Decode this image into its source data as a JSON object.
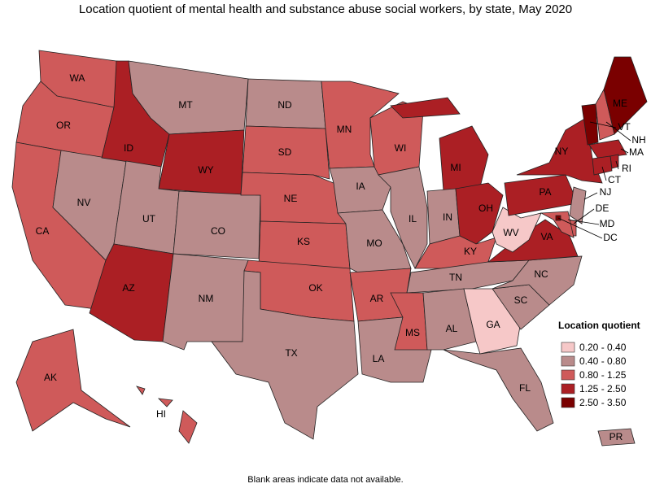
{
  "title": "Location quotient of mental health and substance abuse social workers, by state, May 2020",
  "note": "Blank areas indicate data not available.",
  "legend": {
    "title": "Location quotient",
    "items": [
      {
        "label": "0.20 - 0.40",
        "color": "#f6c8c8"
      },
      {
        "label": "0.40 - 0.80",
        "color": "#b98b8b"
      },
      {
        "label": "0.80 - 1.25",
        "color": "#cf5a5a"
      },
      {
        "label": "1.25 - 2.50",
        "color": "#ab1f24"
      },
      {
        "label": "2.50 - 3.50",
        "color": "#7a0000"
      }
    ]
  },
  "states": [
    {
      "label": "WA",
      "class": 2
    },
    {
      "label": "OR",
      "class": 2
    },
    {
      "label": "CA",
      "class": 2
    },
    {
      "label": "NV",
      "class": 1
    },
    {
      "label": "ID",
      "class": 3
    },
    {
      "label": "MT",
      "class": 1
    },
    {
      "label": "WY",
      "class": 3
    },
    {
      "label": "UT",
      "class": 1
    },
    {
      "label": "CO",
      "class": 1
    },
    {
      "label": "AZ",
      "class": 3
    },
    {
      "label": "NM",
      "class": 1
    },
    {
      "label": "ND",
      "class": 1
    },
    {
      "label": "SD",
      "class": 2
    },
    {
      "label": "NE",
      "class": 2
    },
    {
      "label": "KS",
      "class": 2
    },
    {
      "label": "OK",
      "class": 2
    },
    {
      "label": "TX",
      "class": 1
    },
    {
      "label": "MN",
      "class": 2
    },
    {
      "label": "IA",
      "class": 1
    },
    {
      "label": "MO",
      "class": 1
    },
    {
      "label": "AR",
      "class": 2
    },
    {
      "label": "LA",
      "class": 1
    },
    {
      "label": "WI",
      "class": 2
    },
    {
      "label": "IL",
      "class": 1
    },
    {
      "label": "MI",
      "class": 3
    },
    {
      "label": "IN",
      "class": 1
    },
    {
      "label": "OH",
      "class": 3
    },
    {
      "label": "KY",
      "class": 2
    },
    {
      "label": "TN",
      "class": 1
    },
    {
      "label": "MS",
      "class": 2
    },
    {
      "label": "AL",
      "class": 1
    },
    {
      "label": "GA",
      "class": 0
    },
    {
      "label": "FL",
      "class": 1
    },
    {
      "label": "SC",
      "class": 1
    },
    {
      "label": "NC",
      "class": 1
    },
    {
      "label": "VA",
      "class": 3
    },
    {
      "label": "WV",
      "class": 0
    },
    {
      "label": "PA",
      "class": 3
    },
    {
      "label": "NY",
      "class": 3
    },
    {
      "label": "VT",
      "class": 4
    },
    {
      "label": "NH",
      "class": 2
    },
    {
      "label": "ME",
      "class": 4
    },
    {
      "label": "MA",
      "class": 3
    },
    {
      "label": "RI",
      "class": 3
    },
    {
      "label": "CT",
      "class": 3
    },
    {
      "label": "NJ",
      "class": 1
    },
    {
      "label": "DE",
      "class": 2
    },
    {
      "label": "MD",
      "class": 2
    },
    {
      "label": "DC",
      "class": 4
    },
    {
      "label": "AK",
      "class": 2
    },
    {
      "label": "HI",
      "class": 2
    },
    {
      "label": "PR",
      "class": 1
    }
  ]
}
